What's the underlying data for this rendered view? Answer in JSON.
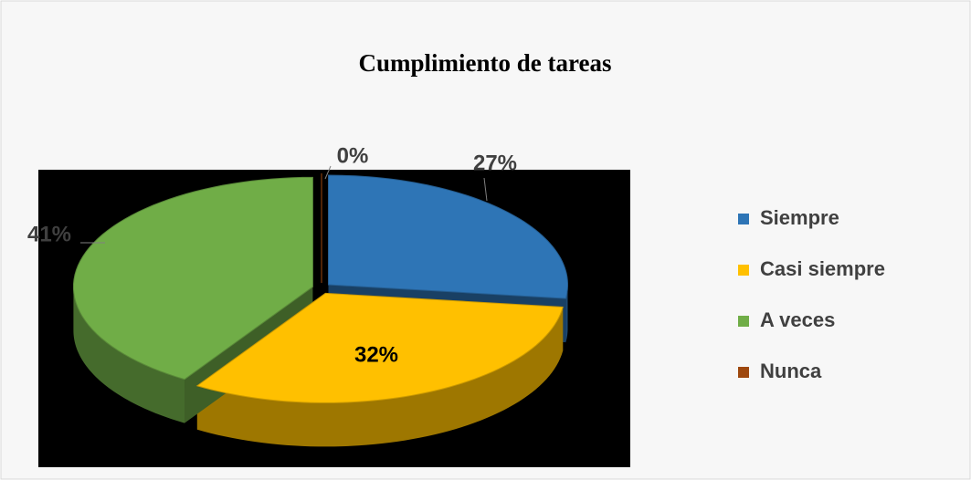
{
  "chart_data": {
    "type": "pie",
    "title": "Cumplimiento de tareas",
    "categories": [
      "Siempre",
      "Casi siempre",
      "A veces",
      "Nunca"
    ],
    "values": [
      27,
      32,
      41,
      0
    ],
    "value_labels": [
      "27%",
      "32%",
      "41%",
      "0%"
    ],
    "colors": [
      "#2e75b6",
      "#ffc000",
      "#70ad47",
      "#9e480e"
    ],
    "legend": "right"
  }
}
